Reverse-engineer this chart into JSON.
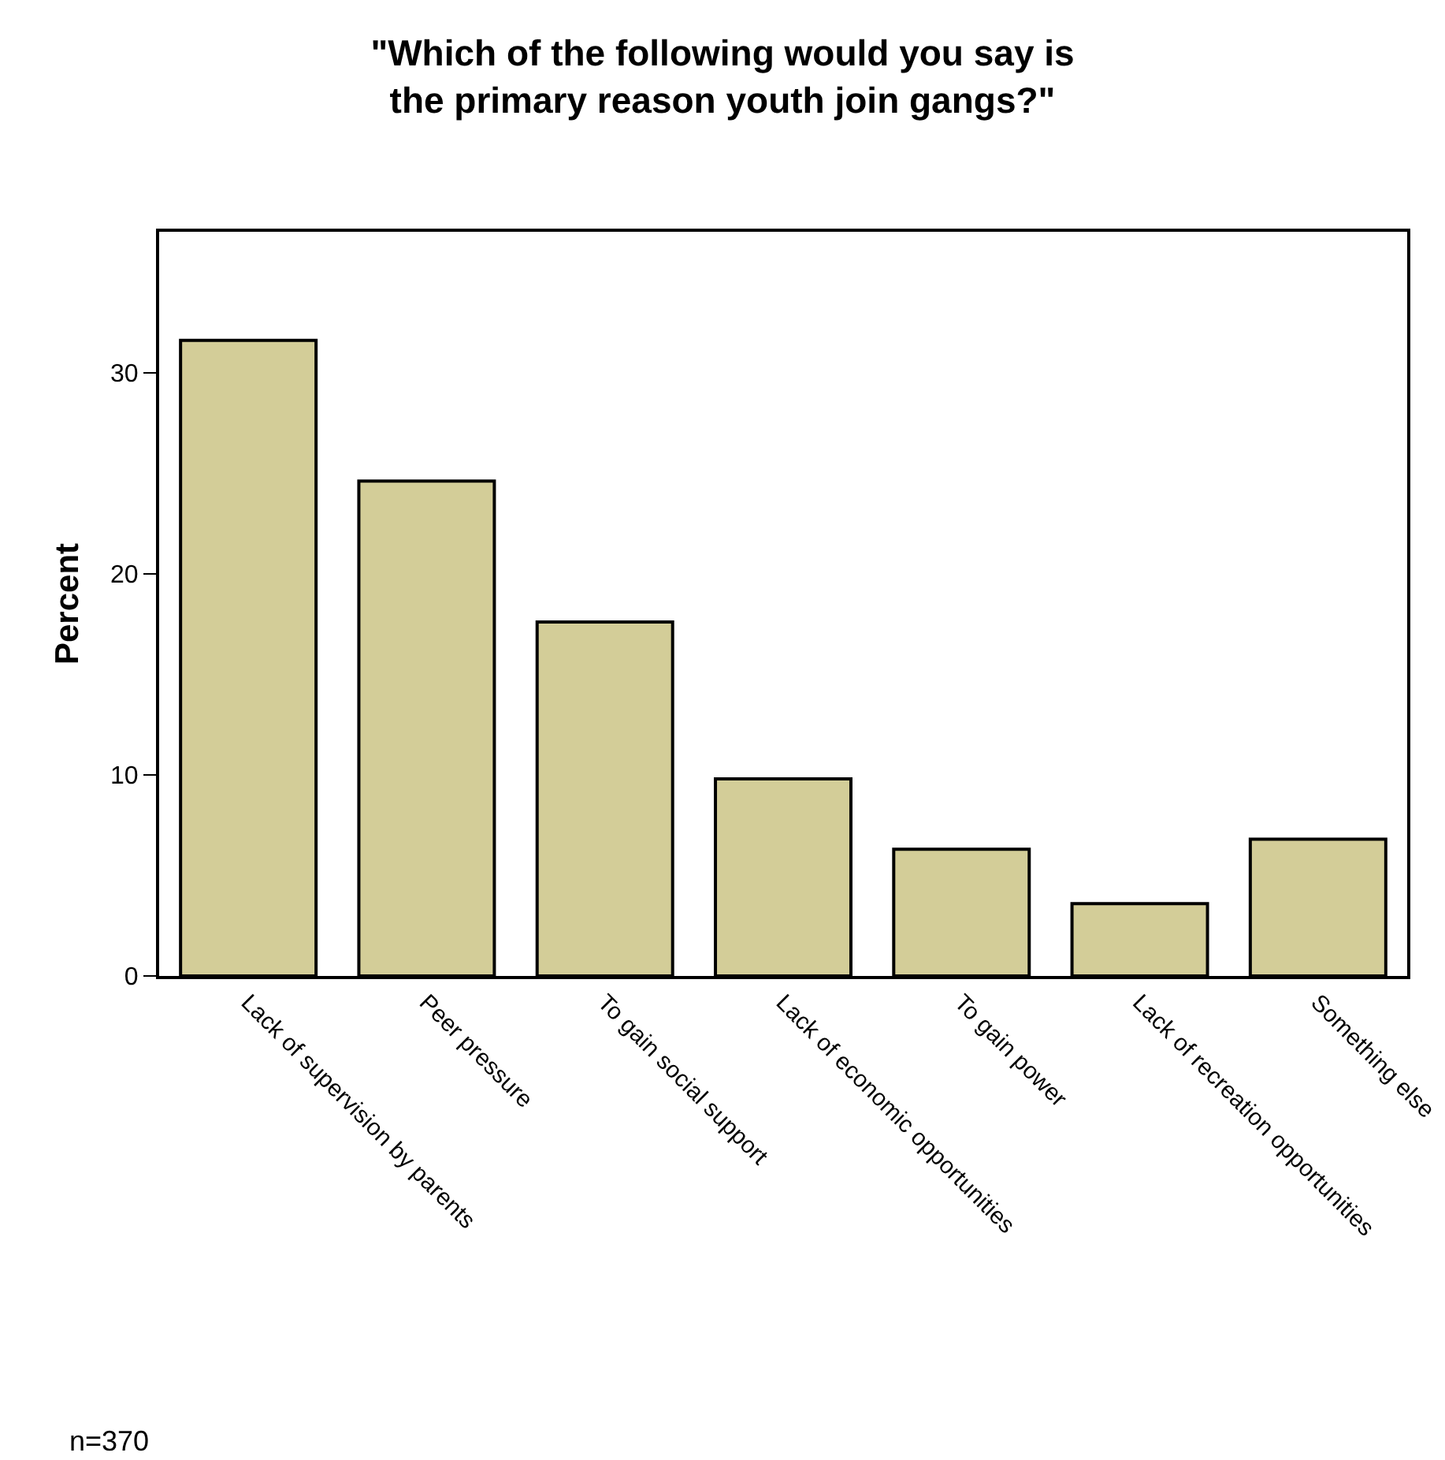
{
  "chart_data": {
    "type": "bar",
    "title": "\"Which of the following would you say is\nthe primary reason youth join gangs?\"",
    "ylabel": "Percent",
    "categories": [
      "Lack of supervision by parents",
      "Peer pressure",
      "To gain social support",
      "Lack of economic opportunities",
      "To gain power",
      "Lack of recreation opportunities",
      "Something else"
    ],
    "values": [
      31.6,
      24.6,
      17.6,
      9.8,
      6.3,
      3.6,
      6.8
    ],
    "color": "#d3cd98",
    "ylim": [
      0,
      37
    ],
    "yticks": [
      0,
      10,
      20,
      30
    ],
    "grid": false,
    "annotations": [
      "n=370"
    ]
  }
}
